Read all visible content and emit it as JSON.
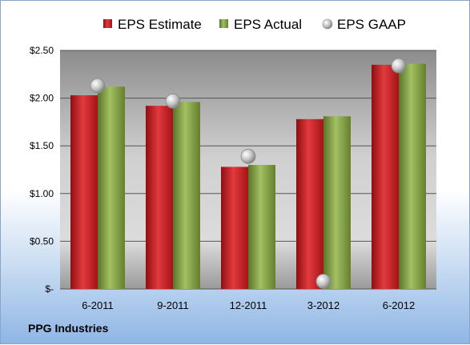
{
  "chart_data": {
    "type": "bar",
    "title": "",
    "xlabel": "",
    "ylabel": "",
    "categories": [
      "6-2011",
      "9-2011",
      "12-2011",
      "3-2012",
      "6-2012"
    ],
    "series": [
      {
        "name": "EPS Estimate",
        "kind": "bar",
        "color": "#cc1f24",
        "values": [
          2.03,
          1.92,
          1.28,
          1.78,
          2.35
        ]
      },
      {
        "name": "EPS Actual",
        "kind": "bar",
        "color": "#7d9b3a",
        "values": [
          2.12,
          1.96,
          1.3,
          1.81,
          2.36
        ]
      },
      {
        "name": "EPS GAAP",
        "kind": "marker",
        "color": "#b0b0b0",
        "values": [
          2.13,
          1.97,
          1.39,
          0.08,
          2.34
        ]
      }
    ],
    "ylim": [
      0,
      2.5
    ],
    "yticks": [
      {
        "value": 0,
        "label": "$-"
      },
      {
        "value": 0.5,
        "label": "$0.50"
      },
      {
        "value": 1.0,
        "label": "$1.00"
      },
      {
        "value": 1.5,
        "label": "$1.50"
      },
      {
        "value": 2.0,
        "label": "$2.00"
      },
      {
        "value": 2.5,
        "label": "$2.50"
      }
    ],
    "grid": true,
    "legend_position": "top"
  },
  "footer": {
    "company": "PPG Industries"
  }
}
